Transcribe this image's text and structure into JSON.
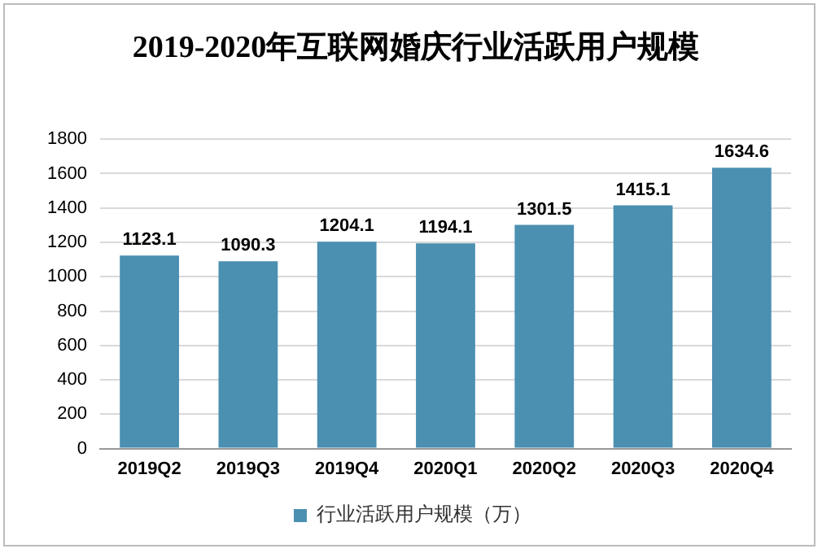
{
  "chart_data": {
    "type": "bar",
    "title": "2019-2020年互联网婚庆行业活跃用户规模",
    "categories": [
      "2019Q2",
      "2019Q3",
      "2019Q4",
      "2020Q1",
      "2020Q2",
      "2020Q3",
      "2020Q4"
    ],
    "series": [
      {
        "name": "行业活跃用户规模（万）",
        "color": "#4b8fb1",
        "values": [
          1123.1,
          1090.3,
          1204.1,
          1194.1,
          1301.5,
          1415.1,
          1634.6
        ]
      }
    ],
    "ylim": [
      0,
      1800
    ],
    "yticks": [
      0,
      200,
      400,
      600,
      800,
      1000,
      1200,
      1400,
      1600,
      1800
    ],
    "grid": "y",
    "legend": "bottom",
    "data_labels": true
  }
}
